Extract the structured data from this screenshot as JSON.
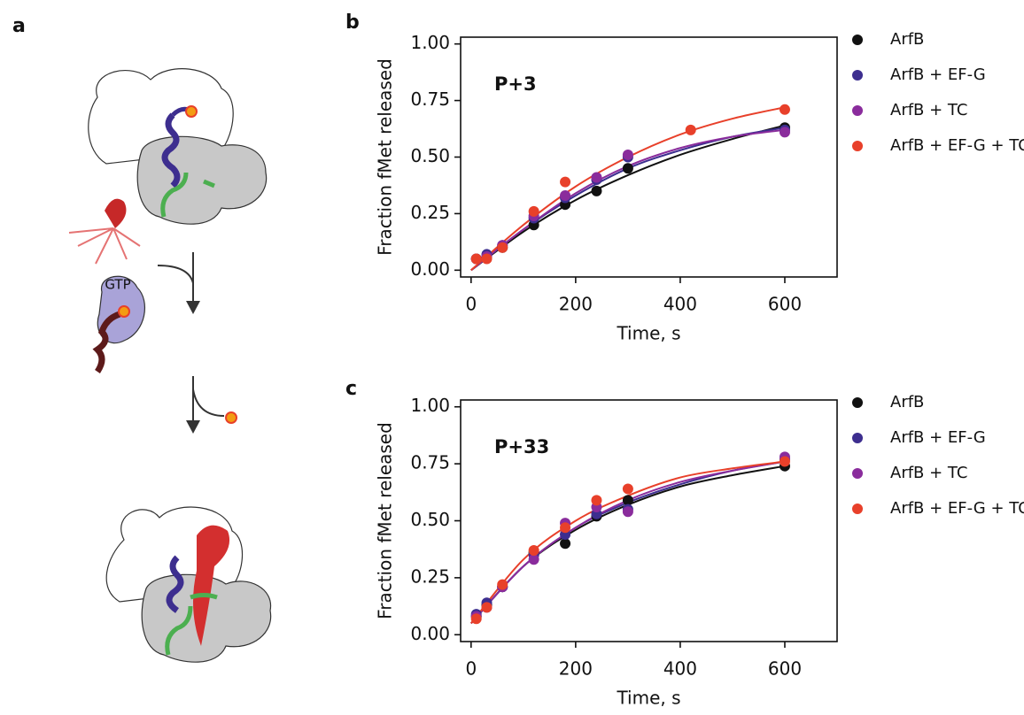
{
  "panel_labels": [
    "a",
    "b",
    "c"
  ],
  "diagram": {
    "label": "GTP"
  },
  "chart_data": [
    {
      "type": "scatter",
      "annotation": "P+3",
      "x_label": "Time, s",
      "y_label": "Fraction fMet released",
      "xlim": [
        -20,
        700
      ],
      "ylim": [
        -0.03,
        1.03
      ],
      "xticks": [
        0,
        200,
        400,
        600
      ],
      "yticks": [
        {
          "value": 0,
          "label": "0.00"
        },
        0.25,
        {
          "value": 0.5,
          "label": "0.50"
        },
        0.75,
        {
          "value": 1,
          "label": "1.00"
        }
      ],
      "fit_x": [
        0,
        100,
        200,
        300,
        400,
        500,
        600
      ],
      "series": [
        {
          "name": "ArfB",
          "color": "#111111",
          "x": [
            10,
            30,
            60,
            120,
            180,
            240,
            300,
            600
          ],
          "values": [
            0.05,
            0.06,
            0.1,
            0.2,
            0.29,
            0.35,
            0.45,
            0.63
          ],
          "fit": [
            0,
            0.17,
            0.31,
            0.42,
            0.51,
            0.58,
            0.64
          ]
        },
        {
          "name": "ArfB + EF-G",
          "color": "#3d2e8f",
          "x": [
            10,
            30,
            60,
            120,
            180,
            240,
            300,
            600
          ],
          "values": [
            0.05,
            0.07,
            0.11,
            0.23,
            0.32,
            0.4,
            0.5,
            0.62
          ],
          "fit": [
            0,
            0.18,
            0.33,
            0.45,
            0.53,
            0.59,
            0.63
          ]
        },
        {
          "name": "ArfB + TC",
          "color": "#8a2c9c",
          "x": [
            10,
            30,
            60,
            120,
            180,
            240,
            300,
            600
          ],
          "values": [
            0.05,
            0.06,
            0.11,
            0.24,
            0.33,
            0.41,
            0.51,
            0.61
          ],
          "fit": [
            0,
            0.18,
            0.34,
            0.46,
            0.54,
            0.59,
            0.62
          ]
        },
        {
          "name": "ArfB + EF-G + TC",
          "color": "#e8402a",
          "x": [
            10,
            30,
            60,
            120,
            180,
            420,
            600
          ],
          "values": [
            0.05,
            0.05,
            0.1,
            0.26,
            0.39,
            0.62,
            0.71
          ],
          "fit": [
            0,
            0.2,
            0.37,
            0.5,
            0.6,
            0.67,
            0.72
          ]
        }
      ]
    },
    {
      "type": "scatter",
      "annotation": "P+33",
      "x_label": "Time, s",
      "y_label": "Fraction fMet released",
      "xlim": [
        -20,
        700
      ],
      "ylim": [
        -0.03,
        1.03
      ],
      "xticks": [
        0,
        200,
        400,
        600
      ],
      "yticks": [
        {
          "value": 0,
          "label": "0.00"
        },
        0.25,
        {
          "value": 0.5,
          "label": "0.50"
        },
        0.75,
        {
          "value": 1,
          "label": "1.00"
        }
      ],
      "fit_x": [
        0,
        100,
        200,
        300,
        400,
        500,
        600
      ],
      "series": [
        {
          "name": "ArfB",
          "color": "#111111",
          "x": [
            10,
            30,
            60,
            120,
            180,
            240,
            300,
            600
          ],
          "values": [
            0.08,
            0.13,
            0.21,
            0.36,
            0.4,
            0.52,
            0.59,
            0.74
          ],
          "fit": [
            0.05,
            0.3,
            0.46,
            0.57,
            0.65,
            0.7,
            0.74
          ]
        },
        {
          "name": "ArfB + EF-G",
          "color": "#3d2e8f",
          "x": [
            10,
            30,
            60,
            120,
            180,
            240,
            300,
            600
          ],
          "values": [
            0.09,
            0.14,
            0.21,
            0.35,
            0.44,
            0.53,
            0.55,
            0.77
          ],
          "fit": [
            0.05,
            0.3,
            0.47,
            0.58,
            0.66,
            0.72,
            0.76
          ]
        },
        {
          "name": "ArfB + TC",
          "color": "#8a2c9c",
          "x": [
            10,
            30,
            60,
            120,
            180,
            240,
            300,
            600
          ],
          "values": [
            0.08,
            0.12,
            0.21,
            0.33,
            0.49,
            0.56,
            0.54,
            0.78
          ],
          "fit": [
            0.05,
            0.3,
            0.47,
            0.59,
            0.67,
            0.72,
            0.76
          ]
        },
        {
          "name": "ArfB + EF-G + TC",
          "color": "#e8402a",
          "x": [
            10,
            30,
            60,
            120,
            180,
            240,
            300,
            600
          ],
          "values": [
            0.07,
            0.12,
            0.22,
            0.37,
            0.47,
            0.59,
            0.64,
            0.76
          ],
          "fit": [
            0.05,
            0.33,
            0.5,
            0.61,
            0.69,
            0.73,
            0.76
          ]
        }
      ]
    }
  ]
}
